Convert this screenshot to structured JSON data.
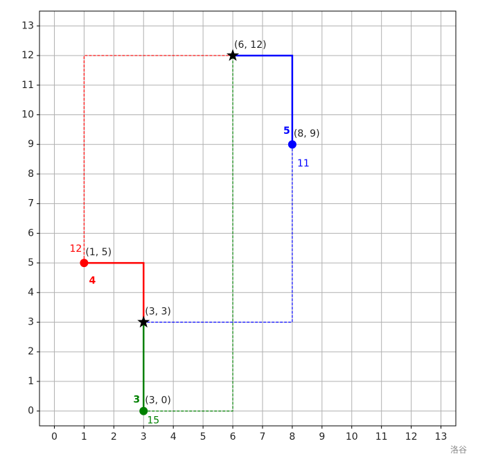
{
  "chart_data": {
    "type": "line",
    "xlim": [
      -0.5,
      13.5
    ],
    "ylim": [
      -0.5,
      13.5
    ],
    "xticks": [
      0,
      1,
      2,
      3,
      4,
      5,
      6,
      7,
      8,
      9,
      10,
      11,
      12,
      13
    ],
    "yticks": [
      0,
      1,
      2,
      3,
      4,
      5,
      6,
      7,
      8,
      9,
      10,
      11,
      12,
      13
    ],
    "grid": true,
    "series": [
      {
        "color": "#ff0000",
        "x": [
          1,
          3,
          3
        ],
        "y": [
          5,
          5,
          3
        ],
        "dashed_x": [
          1,
          1,
          6
        ],
        "dashed_y": [
          5,
          12,
          12
        ],
        "solid_label": 4,
        "dashed_label": 12
      },
      {
        "color": "#008000",
        "x": [
          3,
          3
        ],
        "y": [
          0,
          3
        ],
        "dashed_x": [
          3,
          6,
          6
        ],
        "dashed_y": [
          0,
          0,
          12
        ],
        "solid_label": 3,
        "dashed_label": 15
      },
      {
        "color": "#0000ff",
        "x": [
          8,
          8,
          6
        ],
        "y": [
          9,
          12,
          12
        ],
        "dashed_x": [
          8,
          8,
          3
        ],
        "dashed_y": [
          9,
          3,
          3
        ],
        "solid_label": 5,
        "dashed_label": 11
      }
    ],
    "points": [
      {
        "x": 1,
        "y": 5,
        "label": "(1, 5)",
        "marker": "circle",
        "color": "#ff0000"
      },
      {
        "x": 3,
        "y": 3,
        "label": "(3, 3)",
        "marker": "star",
        "color": "#000000"
      },
      {
        "x": 6,
        "y": 12,
        "label": "(6, 12)",
        "marker": "star",
        "color": "#000000"
      },
      {
        "x": 8,
        "y": 9,
        "label": "(8, 9)",
        "marker": "circle",
        "color": "#0000ff"
      },
      {
        "x": 3,
        "y": 0,
        "label": "(3, 0)",
        "marker": "circle",
        "color": "#008000"
      }
    ],
    "watermark": "洛谷"
  }
}
